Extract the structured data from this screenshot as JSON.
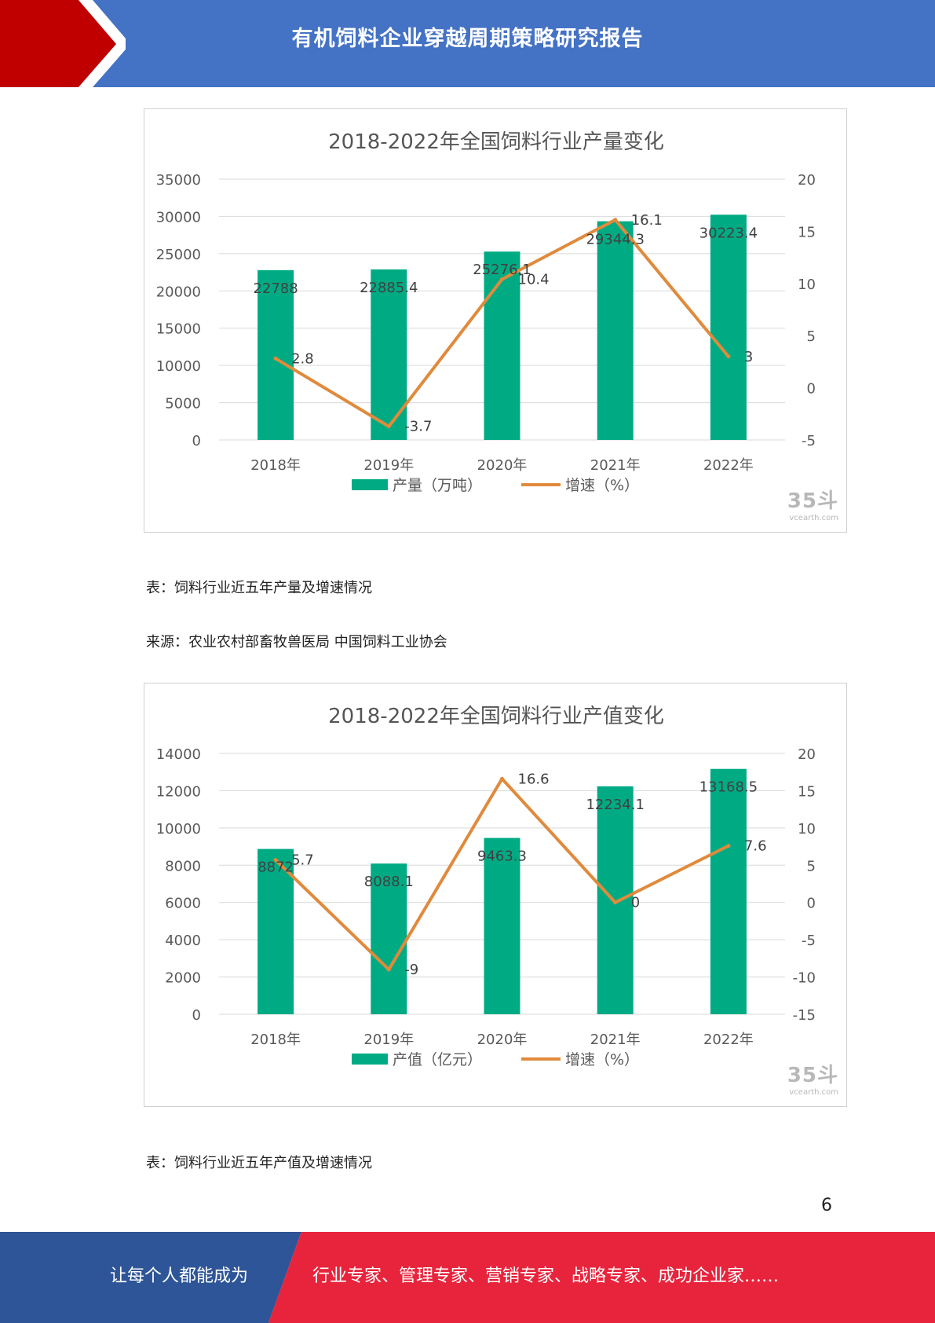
{
  "header": {
    "title": "有机饲料企业穿越周期策略研究报告",
    "bg_color": "#4472c4",
    "accent_color": "#c00000"
  },
  "chart1": {
    "watermark_mark": "35斗",
    "watermark_url": "vcearth.com",
    "chart_data": {
      "type": "bar",
      "title": "2018-2022年全国饲料行业产量变化",
      "categories": [
        "2018年",
        "2019年",
        "2020年",
        "2021年",
        "2022年"
      ],
      "series": [
        {
          "name": "产量（万吨）",
          "type": "bar",
          "axis": "left",
          "color": "#00ab84",
          "values": [
            22788,
            22885.4,
            25276.1,
            29344.3,
            30223.4
          ],
          "labels": [
            "22788",
            "22885.4",
            "25276.1",
            "29344.3",
            "30223.4"
          ]
        },
        {
          "name": "增速（%）",
          "type": "line",
          "axis": "right",
          "color": "#e08a3c",
          "values": [
            2.8,
            -3.7,
            10.4,
            16.1,
            3
          ],
          "labels": [
            "2.8",
            "-3.7",
            "10.4",
            "16.1",
            "3"
          ]
        }
      ],
      "y_left": {
        "ylim": [
          0,
          35000
        ],
        "ticks": [
          0,
          5000,
          10000,
          15000,
          20000,
          25000,
          30000,
          35000
        ]
      },
      "y_right": {
        "ylim": [
          -5,
          20
        ],
        "ticks": [
          -5,
          0,
          5,
          10,
          15,
          20
        ]
      },
      "grid": true,
      "legend_position": "bottom"
    }
  },
  "caption1": "表：饲料行业近五年产量及增速情况",
  "source1": "来源：农业农村部畜牧兽医局 中国饲料工业协会",
  "chart2": {
    "watermark_mark": "35斗",
    "watermark_url": "vcearth.com",
    "chart_data": {
      "type": "bar",
      "title": "2018-2022年全国饲料行业产值变化",
      "categories": [
        "2018年",
        "2019年",
        "2020年",
        "2021年",
        "2022年"
      ],
      "series": [
        {
          "name": "产值（亿元）",
          "type": "bar",
          "axis": "left",
          "color": "#00ab84",
          "values": [
            8872,
            8088.1,
            9463.3,
            12234.1,
            13168.5
          ],
          "labels": [
            "8872",
            "8088.1",
            "9463.3",
            "12234.1",
            "13168.5"
          ]
        },
        {
          "name": "增速（%）",
          "type": "line",
          "axis": "right",
          "color": "#e08a3c",
          "values": [
            5.7,
            -9,
            16.6,
            0,
            7.6
          ],
          "labels": [
            "5.7",
            "-9",
            "16.6",
            "0",
            "7.6"
          ]
        }
      ],
      "y_left": {
        "ylim": [
          0,
          14000
        ],
        "ticks": [
          0,
          2000,
          4000,
          6000,
          8000,
          10000,
          12000,
          14000
        ]
      },
      "y_right": {
        "ylim": [
          -15,
          20
        ],
        "ticks": [
          -15,
          -10,
          -5,
          0,
          5,
          10,
          15,
          20
        ]
      },
      "grid": true,
      "legend_position": "bottom"
    }
  },
  "caption2": "表：饲料行业近五年产值及增速情况",
  "page_number": "6",
  "footer": {
    "left_text": "让每个人都能成为",
    "right_text": "行业专家、管理专家、营销专家、战略专家、成功企业家……",
    "left_color": "#2e5597",
    "right_color": "#e8243c"
  }
}
